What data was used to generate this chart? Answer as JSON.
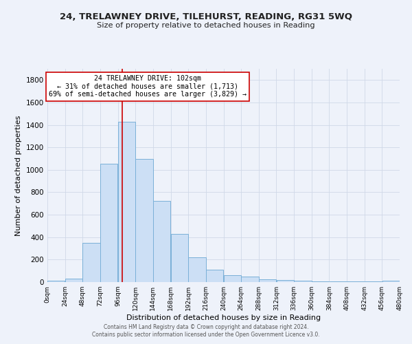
{
  "title": "24, TRELAWNEY DRIVE, TILEHURST, READING, RG31 5WQ",
  "subtitle": "Size of property relative to detached houses in Reading",
  "xlabel": "Distribution of detached houses by size in Reading",
  "ylabel": "Number of detached properties",
  "bar_color": "#ccdff5",
  "bar_edge_color": "#7ab0d8",
  "bins": [
    0,
    24,
    48,
    72,
    96,
    120,
    144,
    168,
    192,
    216,
    240,
    264,
    288,
    312,
    336,
    360,
    384,
    408,
    432,
    456,
    480
  ],
  "values": [
    15,
    30,
    350,
    1055,
    1430,
    1100,
    725,
    430,
    220,
    110,
    60,
    50,
    25,
    20,
    10,
    5,
    5,
    5,
    5,
    10
  ],
  "tick_labels": [
    "0sqm",
    "24sqm",
    "48sqm",
    "72sqm",
    "96sqm",
    "120sqm",
    "144sqm",
    "168sqm",
    "192sqm",
    "216sqm",
    "240sqm",
    "264sqm",
    "288sqm",
    "312sqm",
    "336sqm",
    "360sqm",
    "384sqm",
    "408sqm",
    "432sqm",
    "456sqm",
    "480sqm"
  ],
  "vline_x": 102,
  "vline_color": "#cc0000",
  "annotation_title": "24 TRELAWNEY DRIVE: 102sqm",
  "annotation_line1": "← 31% of detached houses are smaller (1,713)",
  "annotation_line2": "69% of semi-detached houses are larger (3,829) →",
  "annotation_box_color": "#ffffff",
  "annotation_box_edge": "#cc0000",
  "ylim": [
    0,
    1900
  ],
  "yticks": [
    0,
    200,
    400,
    600,
    800,
    1000,
    1200,
    1400,
    1600,
    1800
  ],
  "grid_color": "#d0d8e8",
  "bg_color": "#eef2fa",
  "footer1": "Contains HM Land Registry data © Crown copyright and database right 2024.",
  "footer2": "Contains public sector information licensed under the Open Government Licence v3.0."
}
